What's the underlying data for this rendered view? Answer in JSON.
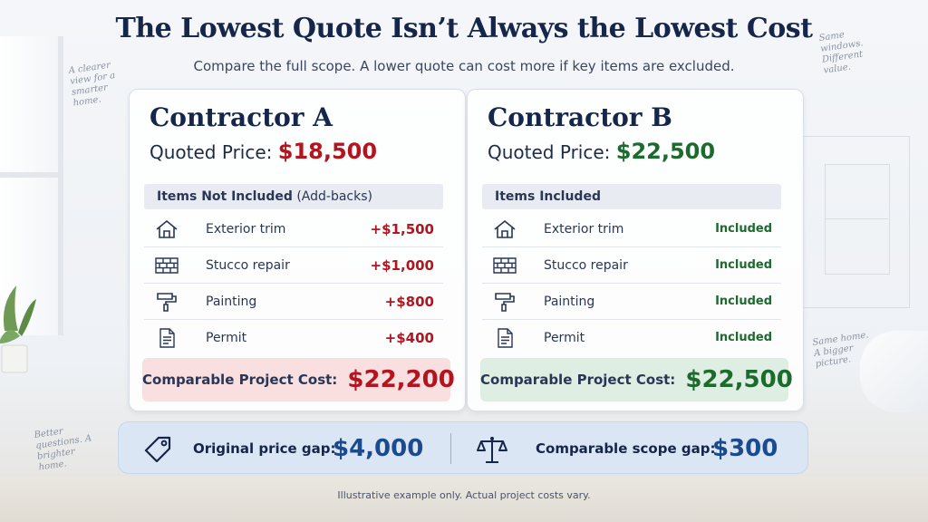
{
  "header": {
    "title": "The Lowest Quote Isn’t Always the Lowest Cost",
    "subtitle": "Compare the full scope. A lower quote can cost more if key items are excluded."
  },
  "notes": {
    "top_left": "A clearer view for a smarter home.",
    "top_right": "Same windows. Different value.",
    "right": "Same home. A bigger picture.",
    "bottom_left": "Better questions. A brighter home."
  },
  "colors": {
    "navy": "#16264a",
    "red": "#b3141e",
    "green": "#1d6a2e",
    "blue": "#1b4a8f"
  },
  "contractor_a": {
    "name": "Contractor A",
    "price_label": "Quoted Price:",
    "price": "$18,500",
    "section_title": "Items Not Included",
    "section_note": "(Add-backs)",
    "items": [
      {
        "icon": "house-icon",
        "label": "Exterior trim",
        "value": "+$1,500"
      },
      {
        "icon": "brick-icon",
        "label": "Stucco repair",
        "value": "+$1,000"
      },
      {
        "icon": "paint-roller-icon",
        "label": "Painting",
        "value": "+$800"
      },
      {
        "icon": "document-icon",
        "label": "Permit",
        "value": "+$400"
      }
    ],
    "total_label": "Comparable Project Cost:",
    "total": "$22,200"
  },
  "contractor_b": {
    "name": "Contractor B",
    "price_label": "Quoted Price:",
    "price": "$22,500",
    "section_title": "Items Included",
    "items": [
      {
        "icon": "house-icon",
        "label": "Exterior trim",
        "value": "Included"
      },
      {
        "icon": "brick-icon",
        "label": "Stucco repair",
        "value": "Included"
      },
      {
        "icon": "paint-roller-icon",
        "label": "Painting",
        "value": "Included"
      },
      {
        "icon": "document-icon",
        "label": "Permit",
        "value": "Included"
      }
    ],
    "total_label": "Comparable Project Cost:",
    "total": "$22,500"
  },
  "gaps": {
    "original_label": "Original price gap:",
    "original_value": "$4,000",
    "original_icon": "price-tag-icon",
    "scope_label": "Comparable scope gap:",
    "scope_value": "$300",
    "scope_icon": "balance-scale-icon"
  },
  "footer": {
    "disclaimer": "Illustrative example only. Actual project costs vary."
  }
}
